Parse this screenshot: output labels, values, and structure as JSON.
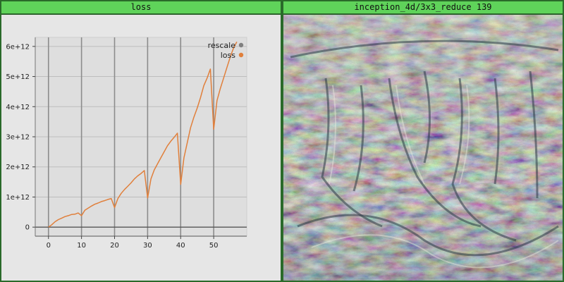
{
  "panels": {
    "loss_title": "loss",
    "image_title": "inception_4d/3x3_reduce 139"
  },
  "colors": {
    "title_bar": "#5fd35a",
    "series_loss": "#e07f3b",
    "series_rescale": "#808080"
  },
  "chart_data": {
    "type": "line",
    "title": "",
    "xlabel": "",
    "ylabel": "",
    "xlim": [
      -4,
      60
    ],
    "ylim": [
      -300000000000,
      6300000000000
    ],
    "x_ticks": [
      0,
      10,
      20,
      30,
      40,
      50
    ],
    "y_ticks": [
      0,
      1000000000000,
      2000000000000,
      3000000000000,
      4000000000000,
      5000000000000,
      6000000000000
    ],
    "y_tick_labels": [
      "0",
      "1e+12",
      "2e+12",
      "3e+12",
      "4e+12",
      "5e+12",
      "6e+12"
    ],
    "vertical_lines_at": [
      0,
      10,
      20,
      30,
      40,
      50
    ],
    "grid": true,
    "legend_position": "top-right",
    "legend": [
      "rescale",
      "loss"
    ],
    "series": [
      {
        "name": "loss",
        "color": "#e07f3b",
        "x": [
          0,
          1,
          2,
          3,
          4,
          5,
          6,
          7,
          8,
          9,
          10,
          11,
          12,
          13,
          14,
          15,
          16,
          17,
          18,
          19,
          20,
          21,
          22,
          23,
          24,
          25,
          26,
          27,
          28,
          29,
          30,
          31,
          32,
          33,
          34,
          35,
          36,
          37,
          38,
          39,
          40,
          41,
          42,
          43,
          44,
          45,
          46,
          47,
          48,
          49,
          50,
          51,
          52,
          53,
          54,
          55,
          56,
          57
        ],
        "y": [
          0,
          80000000000,
          180000000000,
          250000000000,
          300000000000,
          350000000000,
          380000000000,
          420000000000,
          430000000000,
          470000000000,
          380000000000,
          560000000000,
          630000000000,
          700000000000,
          760000000000,
          800000000000,
          850000000000,
          880000000000,
          920000000000,
          950000000000,
          650000000000,
          950000000000,
          1120000000000,
          1250000000000,
          1360000000000,
          1470000000000,
          1600000000000,
          1700000000000,
          1780000000000,
          1880000000000,
          970000000000,
          1600000000000,
          1900000000000,
          2100000000000,
          2300000000000,
          2500000000000,
          2700000000000,
          2850000000000,
          2980000000000,
          3120000000000,
          1420000000000,
          2300000000000,
          2800000000000,
          3300000000000,
          3650000000000,
          3950000000000,
          4300000000000,
          4700000000000,
          4950000000000,
          5250000000000,
          3250000000000,
          4200000000000,
          4600000000000,
          4950000000000,
          5300000000000,
          5650000000000,
          5950000000000,
          6150000000000
        ]
      }
    ]
  }
}
